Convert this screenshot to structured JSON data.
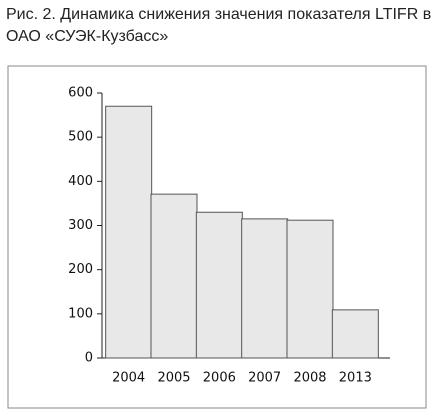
{
  "chart_data": {
    "type": "bar",
    "title": "Рис. 2. Динамика снижения значения показателя LTIFR в ОАО «СУЭК-Кузбасс»",
    "categories": [
      "2004",
      "2005",
      "2006",
      "2007",
      "2008",
      "2013"
    ],
    "values": [
      570,
      371,
      330,
      315,
      312,
      109
    ],
    "color": "#e8e8e8",
    "ylim": [
      0,
      600
    ],
    "yticks": [
      0,
      100,
      200,
      300,
      400,
      500,
      600
    ],
    "grid": false
  }
}
